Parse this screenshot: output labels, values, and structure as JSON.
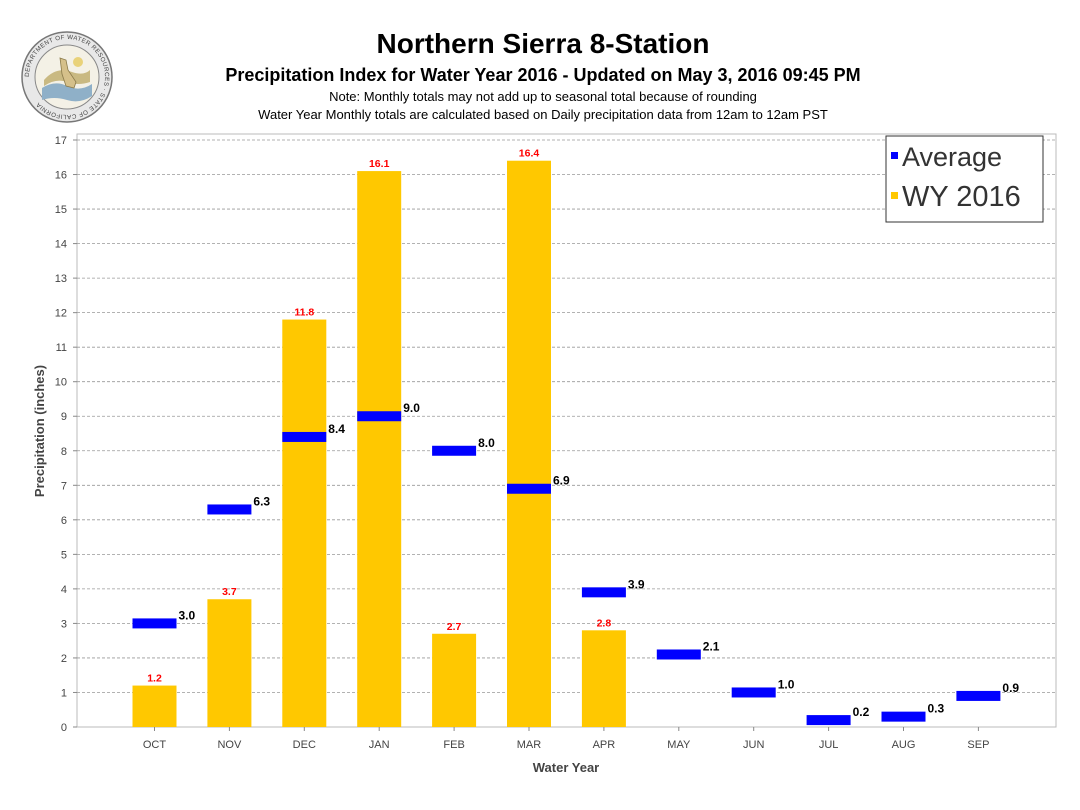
{
  "header": {
    "title": "Northern Sierra 8-Station",
    "subtitle": "Precipitation Index for Water Year 2016 - Updated on May 3, 2016 09:45 PM",
    "note1": "Note: Monthly totals may not add up to seasonal total because of rounding",
    "note2": "Water Year Monthly totals are calculated based on Daily precipitation data from 12am to 12am PST"
  },
  "logo": {
    "text": "DEPARTMENT OF WATER RESOURCES · STATE OF CALIFORNIA"
  },
  "colors": {
    "bar": "#FFC800",
    "average": "#0000FF",
    "bar_label": "#FF0000",
    "avg_label": "#000000",
    "grid": "#999999"
  },
  "chart_data": {
    "type": "bar",
    "categories": [
      "OCT",
      "NOV",
      "DEC",
      "JAN",
      "FEB",
      "MAR",
      "APR",
      "MAY",
      "JUN",
      "JUL",
      "AUG",
      "SEP"
    ],
    "series": [
      {
        "name": "Average",
        "values": [
          3.0,
          6.3,
          8.4,
          9.0,
          8.0,
          6.9,
          3.9,
          2.1,
          1.0,
          0.2,
          0.3,
          0.9
        ],
        "labels": [
          "3.0",
          "6.3",
          "8.4",
          "9.0",
          "8.0",
          "6.9",
          "3.9",
          "2.1",
          "1.0",
          "0.2",
          "0.3",
          "0.9"
        ]
      },
      {
        "name": "WY 2016",
        "values": [
          1.2,
          3.7,
          11.8,
          16.1,
          2.7,
          16.4,
          2.8,
          null,
          null,
          null,
          null,
          null
        ],
        "labels": [
          "1.2",
          "3.7",
          "11.8",
          "16.1",
          "2.7",
          "16.4",
          "2.8",
          "",
          "",
          "",
          "",
          ""
        ]
      }
    ],
    "xlabel": "Water Year",
    "ylabel": "Precipitation (inches)",
    "ylim": [
      0,
      17
    ],
    "yticks": [
      "0",
      "1",
      "2",
      "3",
      "4",
      "5",
      "6",
      "7",
      "8",
      "9",
      "10",
      "11",
      "12",
      "13",
      "14",
      "15",
      "16",
      "17"
    ],
    "grid": true,
    "legend_position": "top-right"
  }
}
